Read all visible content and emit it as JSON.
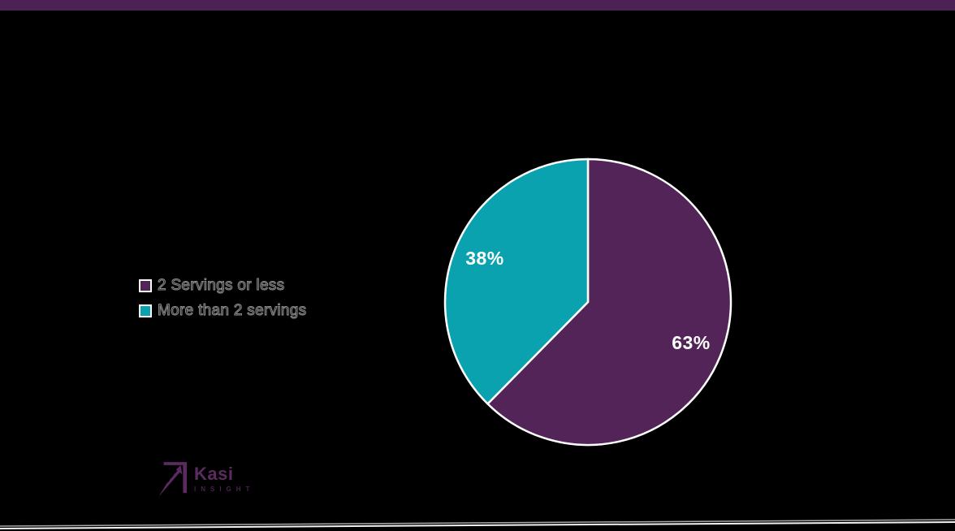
{
  "page": {
    "background_color": "#000000",
    "top_bar_color": "#4C2153"
  },
  "chart_data": {
    "type": "pie",
    "categories": [
      "2 Servings or less",
      "More than 2 servings"
    ],
    "values": [
      63,
      38
    ],
    "data_labels": [
      "63%",
      "38%"
    ],
    "slice_colors": [
      "#522457",
      "#0AA2AE"
    ],
    "slice_stroke_color": "#FFFFFF",
    "data_label_color": "#FFFFFF",
    "start_angle_deg": 0,
    "direction": "clockwise",
    "legend_position": "left",
    "title": "",
    "background": "#000000"
  },
  "legend": {
    "items": [
      {
        "label": "2 Servings or less",
        "color": "#522457"
      },
      {
        "label": "More than 2 servings",
        "color": "#0AA2AE"
      }
    ]
  },
  "logo": {
    "brand": "Kasi",
    "subtext": "INSIGHT",
    "brand_color": "#5B2B60",
    "subtext_color": "#4A2150"
  },
  "footer": {
    "line_color_upper": "#A8A8A8",
    "line_color_lower": "#F2F2F2"
  }
}
